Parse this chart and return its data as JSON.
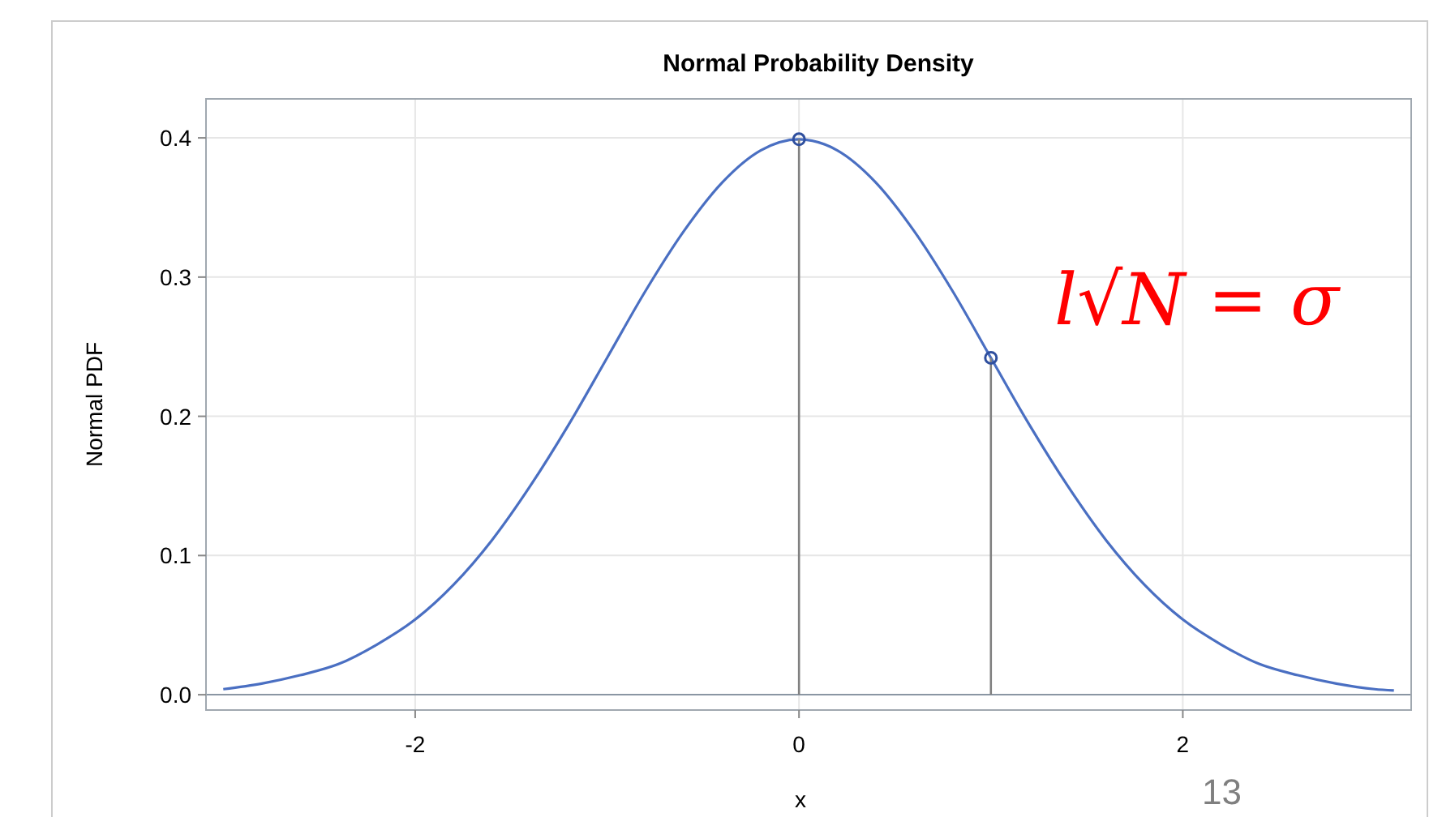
{
  "chart_data": {
    "type": "line",
    "title": "Normal Probability Density",
    "xlabel": "x",
    "ylabel": "Normal PDF",
    "xlim": [
      -3.09,
      3.19
    ],
    "ylim": [
      -0.011,
      0.428
    ],
    "xticks": [
      -2,
      0,
      2
    ],
    "yticks": [
      {
        "value": 0,
        "label": "0.0"
      },
      0.1,
      0.2,
      0.3,
      0.4
    ],
    "grid": true,
    "marker": "none",
    "line_style": "solid",
    "series": [
      {
        "color": "#4a6fc2",
        "x": [
          -3,
          -2.8,
          -2.6,
          -2.4,
          -2.2,
          -2,
          -1.8,
          -1.6,
          -1.4,
          -1.2,
          -1,
          -0.8,
          -0.6,
          -0.4,
          -0.2,
          0,
          0.2,
          0.4,
          0.6,
          0.8,
          1,
          1.2,
          1.4,
          1.6,
          1.8,
          2,
          2.2,
          2.4,
          2.6,
          2.8,
          3,
          3.1
        ],
        "values": [
          0.004,
          0.008,
          0.014,
          0.022,
          0.036,
          0.054,
          0.079,
          0.111,
          0.15,
          0.194,
          0.242,
          0.29,
          0.333,
          0.368,
          0.391,
          0.399,
          0.391,
          0.368,
          0.333,
          0.29,
          0.242,
          0.194,
          0.15,
          0.111,
          0.079,
          0.054,
          0.036,
          0.022,
          0.014,
          0.008,
          0.004,
          0.003
        ]
      },
      {
        "type": "lollipop",
        "color": "#2f4f9e",
        "marker": "circle",
        "x": [
          0,
          1
        ],
        "values": [
          0.399,
          0.242
        ]
      }
    ],
    "annotations": [
      "l√N = σ",
      "13"
    ]
  }
}
